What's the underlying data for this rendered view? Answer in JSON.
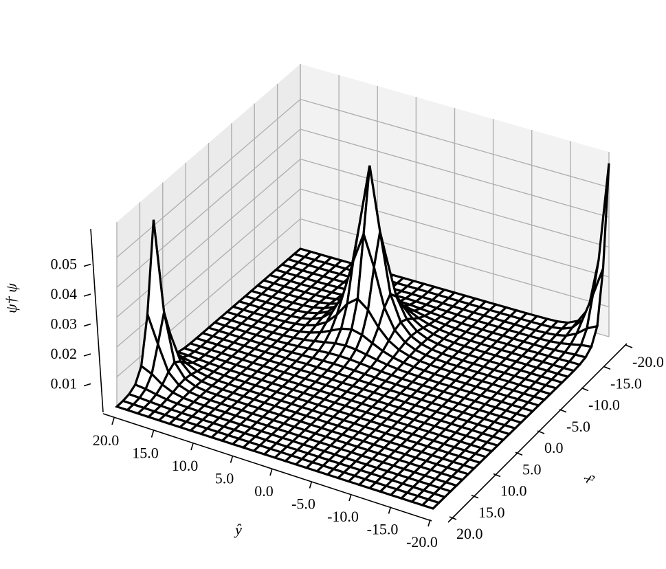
{
  "chart_data": {
    "type": "surface-wireframe",
    "title": "",
    "xlabel": "x̂",
    "ylabel": "ŷ",
    "zlabel": "ψ† ψ",
    "x_ticks": [
      "-20.0",
      "-15.0",
      "-10.0",
      "-5.0",
      "0.0",
      "5.0",
      "10.0",
      "15.0",
      "20.0"
    ],
    "y_ticks": [
      "-20.0",
      "-15.0",
      "-10.0",
      "-5.0",
      "0.0",
      "5.0",
      "10.0",
      "15.0",
      "20.0"
    ],
    "z_ticks": [
      "0.01",
      "0.02",
      "0.03",
      "0.04",
      "0.05"
    ],
    "xlim": [
      -20,
      20
    ],
    "ylim": [
      -20,
      20
    ],
    "zlim": [
      0.0,
      0.06
    ],
    "grid": true,
    "wire_color": "#000000",
    "pane_color": "#f2f2f2",
    "grid_color": "#b0b0b0",
    "grid_points": 31,
    "peaks": [
      {
        "x": -20.0,
        "y": -20.0,
        "height": 0.058,
        "width": 1.3
      },
      {
        "x": -8.0,
        "y": 4.0,
        "height": 0.056,
        "width": 1.9
      },
      {
        "x": 12.0,
        "y": 20.0,
        "height": 0.052,
        "width": 1.3
      }
    ]
  }
}
